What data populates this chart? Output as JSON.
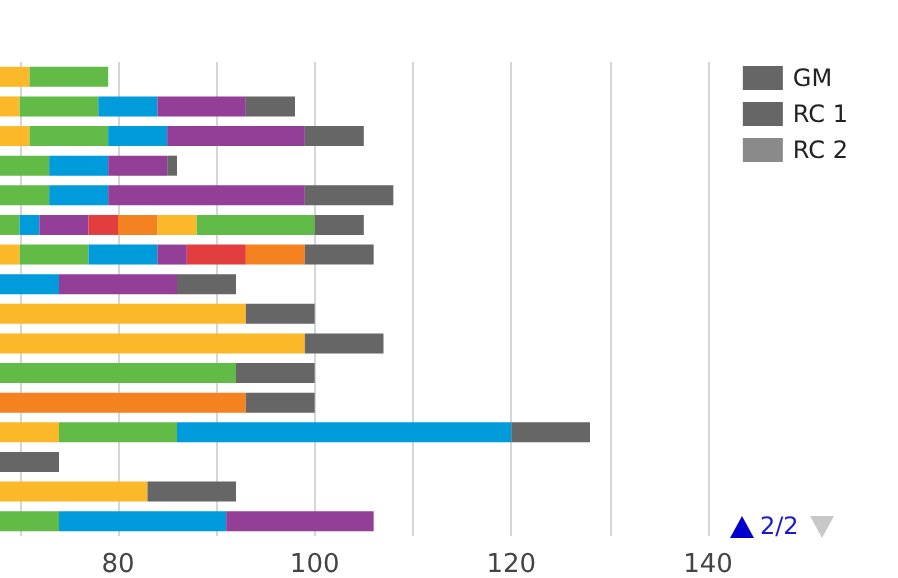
{
  "chart_data": {
    "type": "bar",
    "orientation": "horizontal",
    "categories": [
      null,
      null,
      null,
      null,
      null,
      null,
      null,
      null,
      null,
      null,
      null,
      null,
      null,
      null,
      null,
      null
    ],
    "series": [
      {
        "colors": [
          "#fbb829",
          "#fbb829",
          "#fbb829",
          "#63bb47",
          "#63bb47",
          "#63bb47",
          "#fbb829",
          "#009bdb",
          "#fbb829",
          "#fbb829",
          "#63bb47",
          "#f58220",
          "#fbb829",
          null,
          "#fbb829",
          "#63bb47"
        ],
        "base": [
          68,
          68,
          68,
          68,
          68,
          68,
          68,
          68,
          68,
          68,
          68,
          68,
          68,
          null,
          68,
          68
        ],
        "values": [
          3,
          2,
          3,
          5,
          5,
          2,
          2,
          6,
          25,
          31,
          24,
          25,
          6,
          null,
          15,
          6
        ]
      },
      {
        "colors": [
          "#63bb47",
          "#63bb47",
          "#63bb47",
          "#009bdb",
          "#009bdb",
          "#009bdb",
          "#63bb47",
          "#933f98",
          null,
          null,
          null,
          null,
          "#63bb47",
          null,
          null,
          "#009bdb"
        ],
        "base": [
          71,
          70,
          71,
          73,
          73,
          70,
          70,
          74,
          null,
          null,
          null,
          null,
          74,
          null,
          null,
          74
        ],
        "values": [
          8,
          8,
          8,
          6,
          6,
          2,
          7,
          12,
          null,
          null,
          null,
          null,
          12,
          null,
          null,
          17
        ]
      },
      {
        "colors": [
          null,
          "#009bdb",
          "#009bdb",
          "#933f98",
          "#933f98",
          "#933f98",
          "#009bdb",
          null,
          null,
          null,
          null,
          null,
          "#009bdb",
          null,
          null,
          "#933f98"
        ],
        "base": [
          null,
          78,
          79,
          79,
          79,
          72,
          77,
          null,
          null,
          null,
          null,
          null,
          86,
          null,
          null,
          91
        ],
        "values": [
          null,
          6,
          6,
          6,
          20,
          5,
          7,
          null,
          null,
          null,
          null,
          null,
          34,
          null,
          null,
          15
        ]
      },
      {
        "colors": [
          null,
          "#933f98",
          "#933f98",
          null,
          null,
          "#e23d3f",
          "#933f98",
          null,
          null,
          null,
          null,
          null,
          null,
          null,
          null,
          null
        ],
        "base": [
          null,
          84,
          85,
          null,
          null,
          77,
          84,
          null,
          null,
          null,
          null,
          null,
          null,
          null,
          null,
          null
        ],
        "values": [
          null,
          9,
          14,
          null,
          null,
          3,
          3,
          null,
          null,
          null,
          null,
          null,
          null,
          null,
          null,
          null
        ]
      },
      {
        "colors": [
          null,
          null,
          null,
          null,
          null,
          "#f58220",
          "#e23d3f",
          null,
          null,
          null,
          null,
          null,
          null,
          null,
          null,
          null
        ],
        "base": [
          null,
          null,
          null,
          null,
          null,
          80,
          87,
          null,
          null,
          null,
          null,
          null,
          null,
          null,
          null,
          null
        ],
        "values": [
          null,
          null,
          null,
          null,
          null,
          4,
          6,
          null,
          null,
          null,
          null,
          null,
          null,
          null,
          null,
          null
        ]
      },
      {
        "colors": [
          null,
          null,
          null,
          null,
          null,
          "#fbb829",
          "#f58220",
          null,
          null,
          null,
          null,
          null,
          null,
          null,
          null,
          null
        ],
        "base": [
          null,
          null,
          null,
          null,
          null,
          84,
          93,
          null,
          null,
          null,
          null,
          null,
          null,
          null,
          null,
          null
        ],
        "values": [
          null,
          null,
          null,
          null,
          null,
          4,
          6,
          null,
          null,
          null,
          null,
          null,
          null,
          null,
          null,
          null
        ]
      },
      {
        "colors": [
          null,
          null,
          null,
          null,
          null,
          "#63bb47",
          null,
          null,
          null,
          null,
          null,
          null,
          null,
          null,
          null,
          null
        ],
        "base": [
          null,
          null,
          null,
          null,
          null,
          88,
          null,
          null,
          null,
          null,
          null,
          null,
          null,
          null,
          null,
          null
        ],
        "values": [
          null,
          null,
          null,
          null,
          null,
          12,
          null,
          null,
          null,
          null,
          null,
          null,
          null,
          null,
          null,
          null
        ]
      },
      {
        "name": "GM",
        "color": "#666666",
        "base": [
          null,
          93,
          99,
          85,
          99,
          100,
          99,
          86,
          93,
          99,
          92,
          93,
          120,
          68,
          83,
          null
        ],
        "values": [
          null,
          5,
          6,
          1,
          9,
          5,
          7,
          6,
          7,
          8,
          8,
          7,
          8,
          6,
          9,
          null
        ]
      },
      {
        "name": "RC 1",
        "color": "#666666",
        "values": [
          null,
          null,
          null,
          null,
          null,
          null,
          null,
          null,
          null,
          null,
          null,
          null,
          null,
          null,
          null,
          null
        ]
      },
      {
        "name": "RC 2",
        "color": "#8a8a8a",
        "values": [
          null,
          null,
          null,
          null,
          null,
          null,
          null,
          null,
          null,
          null,
          null,
          null,
          null,
          null,
          null,
          null
        ]
      }
    ],
    "xlim": [
      68,
      140
    ],
    "xticks": [
      {
        "value": 70,
        "label": null
      },
      80,
      {
        "value": 90,
        "label": null
      },
      100,
      {
        "value": 110,
        "label": null
      },
      120,
      {
        "value": 130,
        "label": null
      },
      140
    ],
    "grid": "x",
    "legend": "top right",
    "tick_labels": "x",
    "annotations": [
      "2/2"
    ]
  }
}
